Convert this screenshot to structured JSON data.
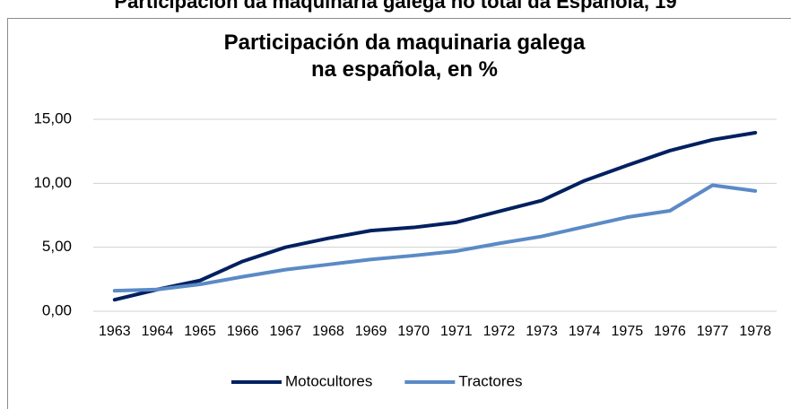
{
  "header": "Participación da maquinaria galega no total da Española, 19",
  "chart_data": {
    "type": "line",
    "title": "Participación da maquinaria galega na española, en %",
    "categories": [
      "1963",
      "1964",
      "1965",
      "1966",
      "1967",
      "1968",
      "1969",
      "1970",
      "1971",
      "1972",
      "1973",
      "1974",
      "1975",
      "1976",
      "1977",
      "1978"
    ],
    "series": [
      {
        "name": "Motocultores",
        "color": "#002060",
        "values": [
          0.9,
          1.7,
          2.4,
          3.9,
          5.0,
          5.7,
          6.3,
          6.55,
          6.95,
          7.8,
          8.65,
          10.2,
          11.4,
          12.55,
          13.4,
          13.95
        ]
      },
      {
        "name": "Tractores",
        "color": "#5b8ac6",
        "values": [
          1.6,
          1.7,
          2.1,
          2.7,
          3.25,
          3.65,
          4.05,
          4.35,
          4.7,
          5.3,
          5.85,
          6.6,
          7.35,
          7.85,
          9.85,
          9.4
        ]
      }
    ],
    "ylim": [
      0,
      15
    ],
    "yticks": [
      {
        "value": 0,
        "label": "0,00"
      },
      {
        "value": 5,
        "label": "5,00"
      },
      {
        "value": 10,
        "label": "10,00"
      },
      {
        "value": 15,
        "label": "15,00"
      }
    ],
    "grid": true,
    "legend": "bottom"
  }
}
